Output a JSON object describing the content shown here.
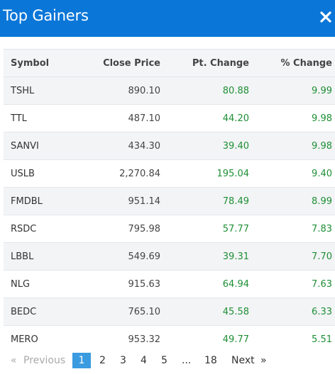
{
  "header": {
    "title": "Top Gainers",
    "close_icon": "close-icon"
  },
  "table": {
    "columns": [
      "Symbol",
      "Close Price",
      "Pt. Change",
      "% Change"
    ],
    "rows": [
      {
        "symbol": "TSHL",
        "close": "890.10",
        "pt": "80.88",
        "pct": "9.99"
      },
      {
        "symbol": "TTL",
        "close": "487.10",
        "pt": "44.20",
        "pct": "9.98"
      },
      {
        "symbol": "SANVI",
        "close": "434.30",
        "pt": "39.40",
        "pct": "9.98"
      },
      {
        "symbol": "USLB",
        "close": "2,270.84",
        "pt": "195.04",
        "pct": "9.40"
      },
      {
        "symbol": "FMDBL",
        "close": "951.14",
        "pt": "78.49",
        "pct": "8.99"
      },
      {
        "symbol": "RSDC",
        "close": "795.98",
        "pt": "57.77",
        "pct": "7.83"
      },
      {
        "symbol": "LBBL",
        "close": "549.69",
        "pt": "39.31",
        "pct": "7.70"
      },
      {
        "symbol": "NLG",
        "close": "915.63",
        "pt": "64.94",
        "pct": "7.63"
      },
      {
        "symbol": "BEDC",
        "close": "765.10",
        "pt": "45.58",
        "pct": "6.33"
      },
      {
        "symbol": "MERO",
        "close": "953.32",
        "pt": "49.77",
        "pct": "5.51"
      }
    ]
  },
  "pagination": {
    "prev_arrow": "«",
    "prev_label": "Previous",
    "pages": [
      "1",
      "2",
      "3",
      "4",
      "5",
      "...",
      "18"
    ],
    "current": "1",
    "next_label": "Next",
    "next_arrow": "»"
  },
  "colors": {
    "header_bg": "#0a76d8",
    "gain_green": "#1e8f35",
    "active_page": "#3a9be0"
  }
}
